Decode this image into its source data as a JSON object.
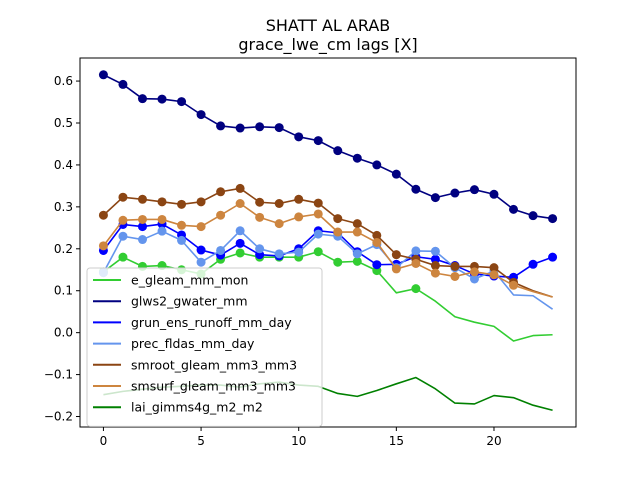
{
  "chart_data": {
    "type": "line",
    "title": "SHATT AL ARAB",
    "subtitle": "grace_lwe_cm lags [X]",
    "xlabel": "",
    "ylabel": "",
    "xlim": [
      -1.2,
      24.2
    ],
    "ylim": [
      -0.225,
      0.655
    ],
    "xticks": [
      0,
      5,
      10,
      15,
      20
    ],
    "yticks": [
      -0.2,
      -0.1,
      0.0,
      0.1,
      0.2,
      0.3,
      0.4,
      0.5,
      0.6
    ],
    "ytick_labels": [
      "−0.2",
      "−0.1",
      "0.0",
      "0.1",
      "0.2",
      "0.3",
      "0.4",
      "0.5",
      "0.6"
    ],
    "legend_position": "lower-left",
    "grid": false,
    "x": [
      0,
      1,
      2,
      3,
      4,
      5,
      6,
      7,
      8,
      9,
      10,
      11,
      12,
      13,
      14,
      15,
      16,
      17,
      18,
      19,
      20,
      21,
      22,
      23
    ],
    "series": [
      {
        "name": "e_gleam_mm_mon",
        "color": "#32cd32",
        "values": [
          0.145,
          0.18,
          0.158,
          0.16,
          0.15,
          0.14,
          0.175,
          0.19,
          0.18,
          0.18,
          0.18,
          0.193,
          0.168,
          0.17,
          0.148,
          0.095,
          0.105,
          0.075,
          0.038,
          0.025,
          0.015,
          -0.02,
          -0.007,
          -0.005
        ],
        "markers": [
          true,
          true,
          true,
          true,
          true,
          true,
          true,
          true,
          true,
          true,
          true,
          true,
          true,
          true,
          true,
          false,
          true,
          false,
          false,
          false,
          false,
          false,
          false,
          false
        ]
      },
      {
        "name": "glws2_gwater_mm",
        "color": "#000080",
        "values": [
          0.615,
          0.592,
          0.558,
          0.557,
          0.551,
          0.52,
          0.493,
          0.488,
          0.491,
          0.489,
          0.467,
          0.458,
          0.434,
          0.416,
          0.4,
          0.378,
          0.342,
          0.322,
          0.333,
          0.341,
          0.33,
          0.294,
          0.279,
          0.272
        ],
        "markers": true
      },
      {
        "name": "grun_ens_runoff_mm_day",
        "color": "#0000ff",
        "values": [
          0.196,
          0.258,
          0.253,
          0.259,
          0.233,
          0.197,
          0.185,
          0.213,
          0.186,
          0.183,
          0.2,
          0.243,
          0.238,
          0.193,
          0.162,
          0.163,
          0.181,
          0.175,
          0.16,
          0.14,
          0.135,
          0.132,
          0.163,
          0.18
        ],
        "markers": true
      },
      {
        "name": "prec_fldas_mm_day",
        "color": "#6495ed",
        "values": [
          0.143,
          0.23,
          0.222,
          0.242,
          0.22,
          0.168,
          0.196,
          0.243,
          0.2,
          0.188,
          0.192,
          0.235,
          0.23,
          0.188,
          0.21,
          0.155,
          0.195,
          0.194,
          0.155,
          0.128,
          0.147,
          0.09,
          0.088,
          0.056
        ],
        "markers": [
          true,
          true,
          true,
          true,
          true,
          true,
          true,
          true,
          true,
          true,
          true,
          true,
          true,
          true,
          true,
          true,
          true,
          true,
          true,
          true,
          true,
          false,
          false,
          false
        ]
      },
      {
        "name": "smroot_gleam_mm3_mm3",
        "color": "#8b4513",
        "values": [
          0.28,
          0.323,
          0.318,
          0.312,
          0.306,
          0.312,
          0.336,
          0.344,
          0.311,
          0.308,
          0.318,
          0.309,
          0.272,
          0.26,
          0.232,
          0.186,
          0.175,
          0.16,
          0.158,
          0.158,
          0.155,
          0.12,
          0.1,
          0.085
        ],
        "markers": [
          true,
          true,
          true,
          true,
          true,
          true,
          true,
          true,
          true,
          true,
          true,
          true,
          true,
          true,
          true,
          true,
          true,
          true,
          true,
          true,
          true,
          true,
          false,
          false
        ]
      },
      {
        "name": "smsurf_gleam_mm3_mm3",
        "color": "#cd853f",
        "values": [
          0.207,
          0.268,
          0.27,
          0.27,
          0.256,
          0.253,
          0.28,
          0.308,
          0.275,
          0.26,
          0.276,
          0.283,
          0.24,
          0.24,
          0.215,
          0.152,
          0.165,
          0.142,
          0.134,
          0.145,
          0.138,
          0.113,
          0.098,
          0.085
        ],
        "markers": [
          true,
          true,
          true,
          true,
          true,
          true,
          true,
          true,
          true,
          true,
          true,
          true,
          true,
          true,
          true,
          true,
          true,
          true,
          true,
          true,
          true,
          true,
          false,
          false
        ]
      },
      {
        "name": "lai_gimms4g_m2_m2",
        "color": "#008000",
        "values": [
          -0.148,
          -0.14,
          -0.135,
          -0.13,
          -0.128,
          -0.125,
          -0.125,
          -0.13,
          -0.122,
          -0.118,
          -0.125,
          -0.128,
          -0.145,
          -0.152,
          -0.138,
          -0.122,
          -0.107,
          -0.134,
          -0.168,
          -0.17,
          -0.15,
          -0.155,
          -0.173,
          -0.185
        ],
        "markers": false
      }
    ]
  }
}
